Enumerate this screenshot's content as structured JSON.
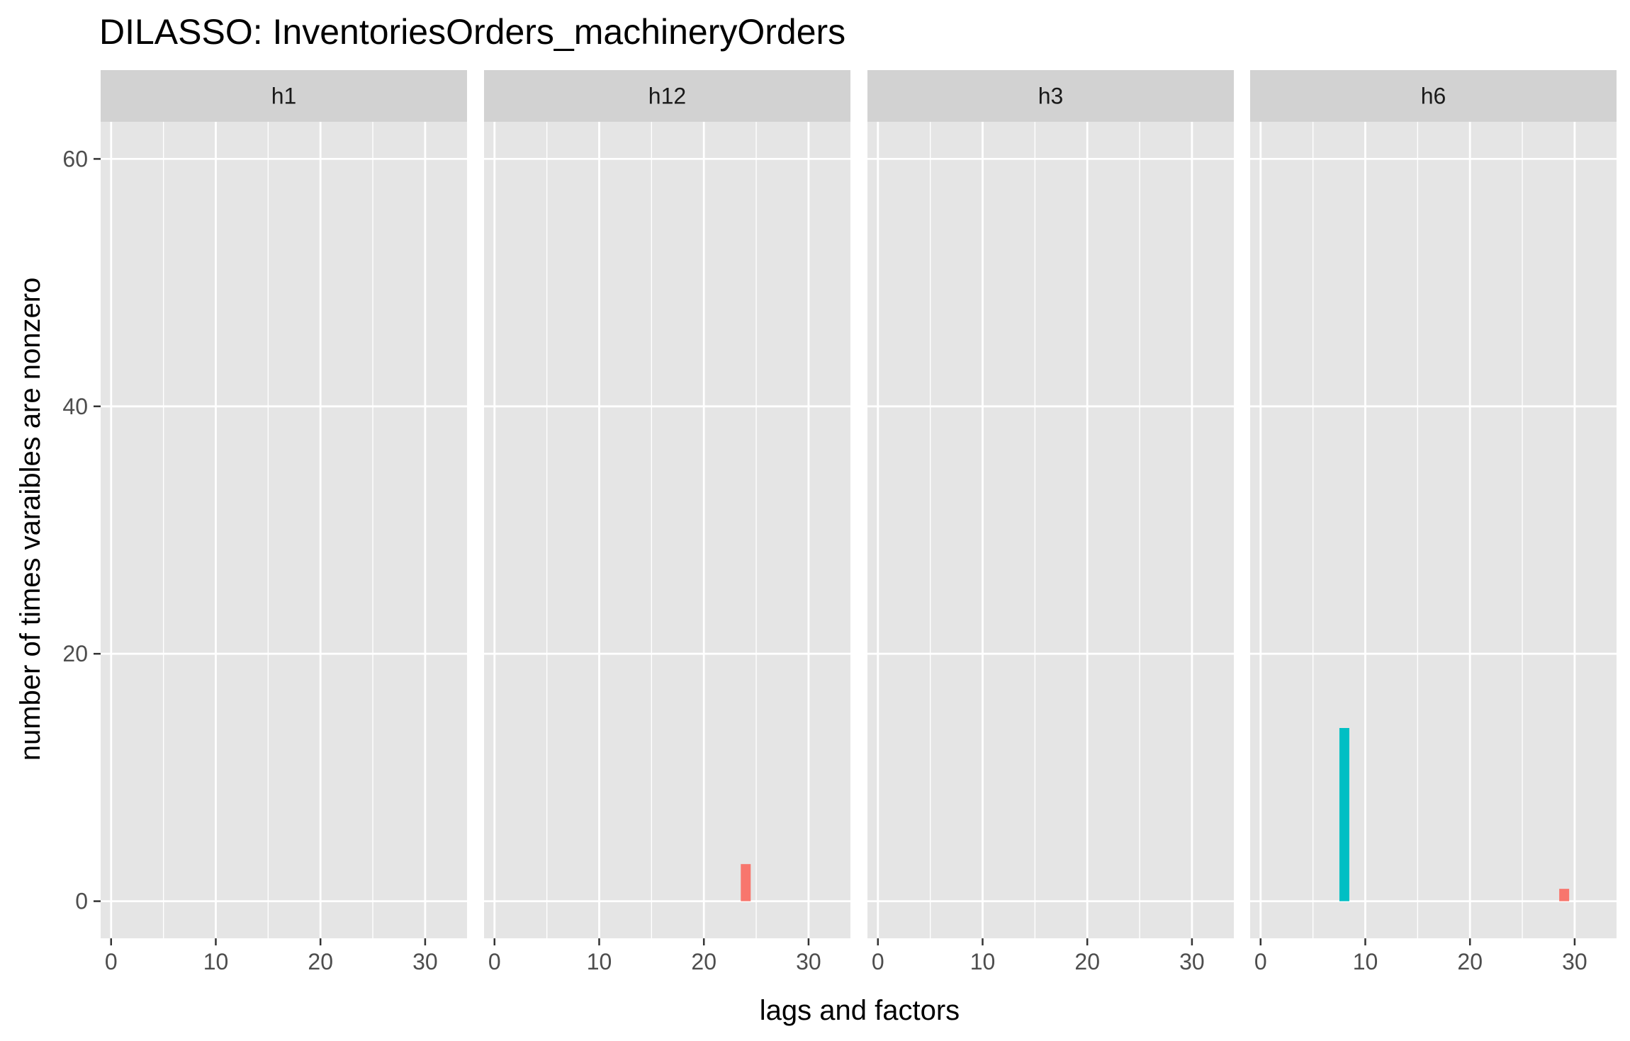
{
  "chart_data": {
    "type": "bar",
    "title": "DILASSO: InventoriesOrders_machineryOrders",
    "xlabel": "lags and factors",
    "ylabel": "number of times varaibles are nonzero",
    "xlim": [
      -1,
      34
    ],
    "ylim": [
      -3,
      63
    ],
    "x_ticks": [
      0,
      10,
      20,
      30
    ],
    "y_ticks": [
      0,
      20,
      40,
      60
    ],
    "grid": true,
    "legend": "none",
    "colors": {
      "panel_bg": "#e5e5e5",
      "strip_bg": "#d2d2d2",
      "grid": "#ffffff",
      "red": "#f8766d",
      "teal": "#00bfc4"
    },
    "facets": [
      {
        "label": "h1",
        "bars": []
      },
      {
        "label": "h12",
        "bars": [
          {
            "x": 24,
            "y": 3,
            "color": "#f8766d"
          }
        ]
      },
      {
        "label": "h3",
        "bars": []
      },
      {
        "label": "h6",
        "bars": [
          {
            "x": 8,
            "y": 14,
            "color": "#00bfc4"
          },
          {
            "x": 29,
            "y": 1,
            "color": "#f8766d"
          }
        ]
      }
    ]
  }
}
